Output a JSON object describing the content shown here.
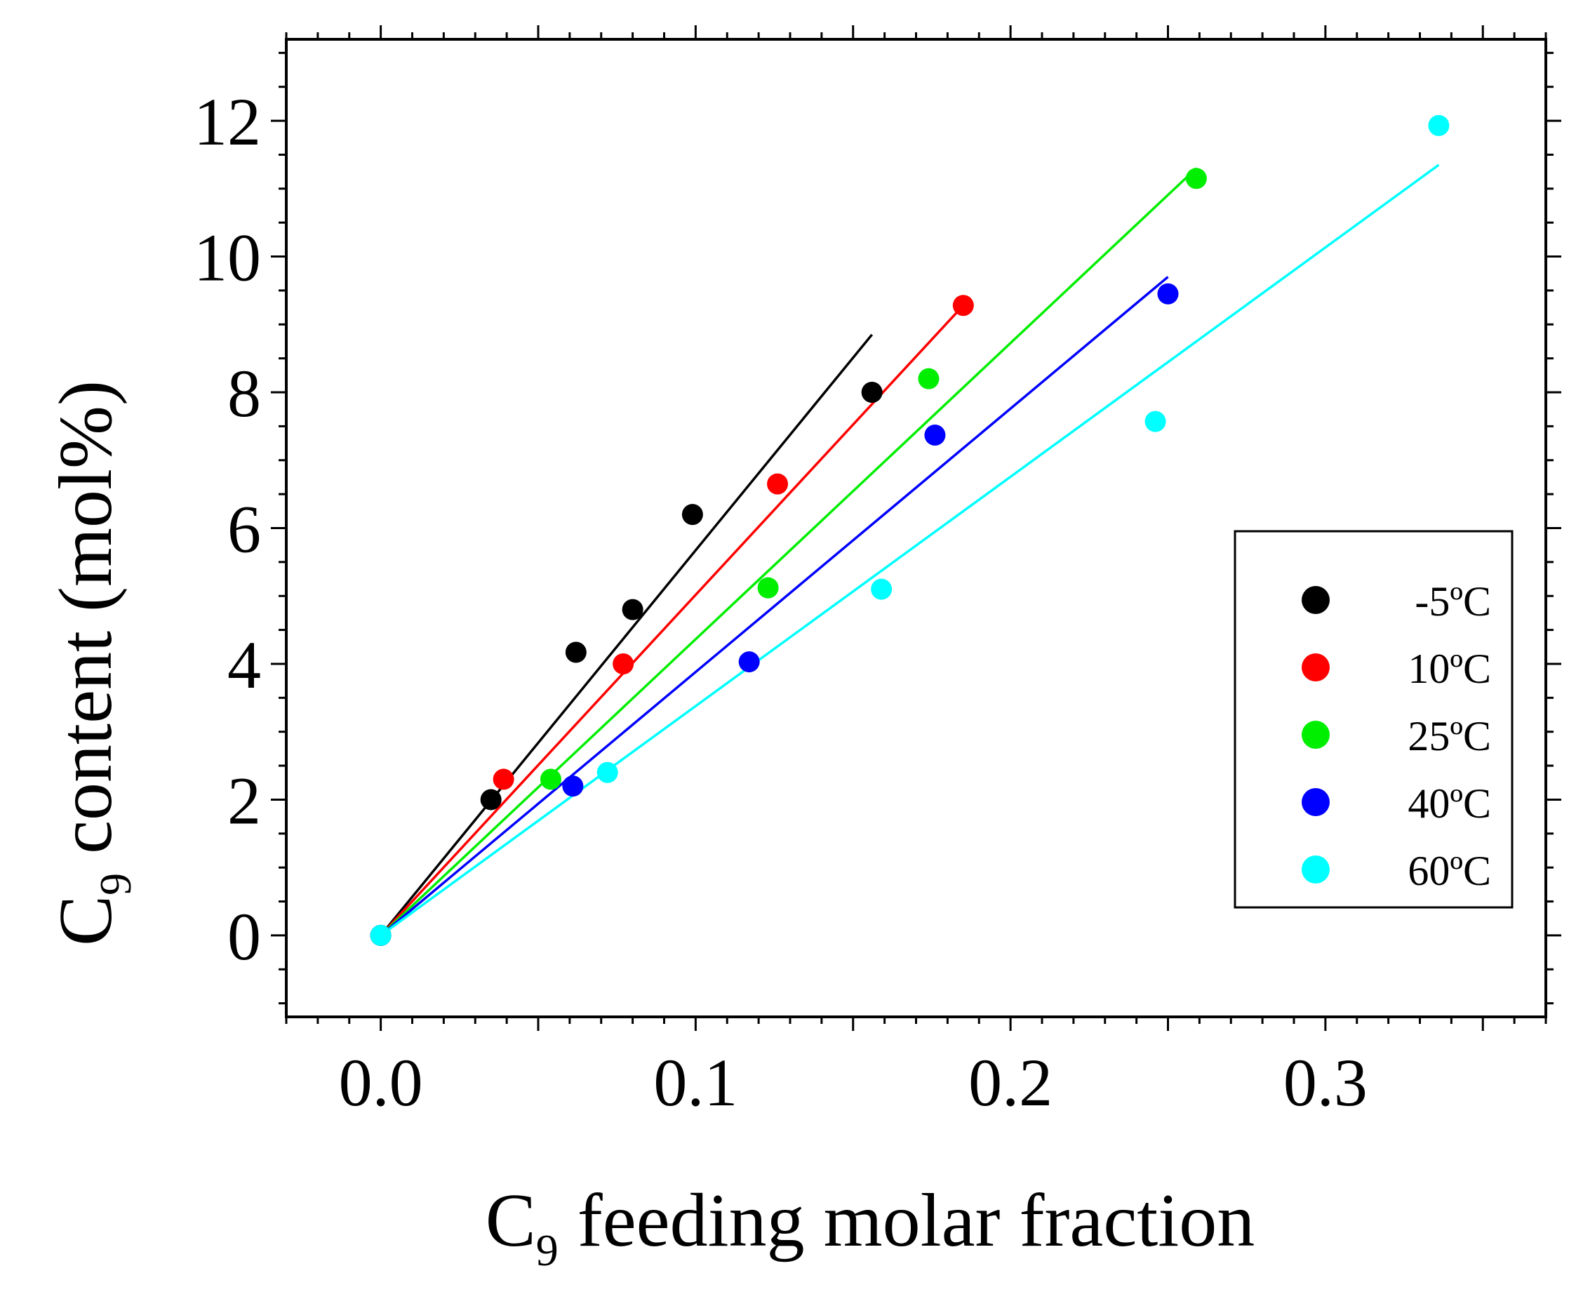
{
  "chart_data": {
    "type": "scatter",
    "xlabel": {
      "prefix": "C",
      "sub": "9",
      "rest": " feeding molar fraction"
    },
    "ylabel": {
      "prefix": "C",
      "sub": "9",
      "rest": " content (mol%)"
    },
    "xlim": [
      -0.03,
      0.37
    ],
    "ylim": [
      -1.2,
      13.2
    ],
    "xticks": [
      0.0,
      0.1,
      0.2,
      0.3
    ],
    "xtick_labels": [
      "0.0",
      "0.1",
      "0.2",
      "0.3"
    ],
    "yticks": [
      0,
      2,
      4,
      6,
      8,
      10,
      12
    ],
    "ytick_labels": [
      "0",
      "2",
      "4",
      "6",
      "8",
      "10",
      "12"
    ],
    "legend_position": "right",
    "series": [
      {
        "name": "-5ºC",
        "color": "#000000",
        "points": [
          [
            0.0,
            0.0
          ],
          [
            0.035,
            2.0
          ],
          [
            0.062,
            4.17
          ],
          [
            0.08,
            4.8
          ],
          [
            0.099,
            6.2
          ],
          [
            0.156,
            8.0
          ]
        ],
        "fit": [
          [
            0.0,
            0.0
          ],
          [
            0.156,
            8.85
          ]
        ]
      },
      {
        "name": "10ºC",
        "color": "#ff0000",
        "points": [
          [
            0.0,
            0.0
          ],
          [
            0.039,
            2.3
          ],
          [
            0.077,
            4.0
          ],
          [
            0.126,
            6.65
          ],
          [
            0.185,
            9.28
          ]
        ],
        "fit": [
          [
            0.0,
            0.0
          ],
          [
            0.185,
            9.28
          ]
        ]
      },
      {
        "name": "25ºC",
        "color": "#00ee00",
        "points": [
          [
            0.0,
            0.0
          ],
          [
            0.054,
            2.3
          ],
          [
            0.123,
            5.12
          ],
          [
            0.174,
            8.2
          ],
          [
            0.259,
            11.15
          ]
        ],
        "fit": [
          [
            0.0,
            0.0
          ],
          [
            0.259,
            11.3
          ]
        ]
      },
      {
        "name": "40ºC",
        "color": "#0000ff",
        "points": [
          [
            0.0,
            0.0
          ],
          [
            0.061,
            2.2
          ],
          [
            0.117,
            4.03
          ],
          [
            0.176,
            7.37
          ],
          [
            0.25,
            9.45
          ]
        ],
        "fit": [
          [
            0.0,
            0.0
          ],
          [
            0.25,
            9.7
          ]
        ]
      },
      {
        "name": "60ºC",
        "color": "#00ffff",
        "points": [
          [
            0.0,
            0.0
          ],
          [
            0.072,
            2.4
          ],
          [
            0.159,
            5.1
          ],
          [
            0.246,
            7.57
          ],
          [
            0.336,
            11.93
          ]
        ],
        "fit": [
          [
            0.0,
            0.0
          ],
          [
            0.336,
            11.35
          ]
        ]
      }
    ]
  }
}
